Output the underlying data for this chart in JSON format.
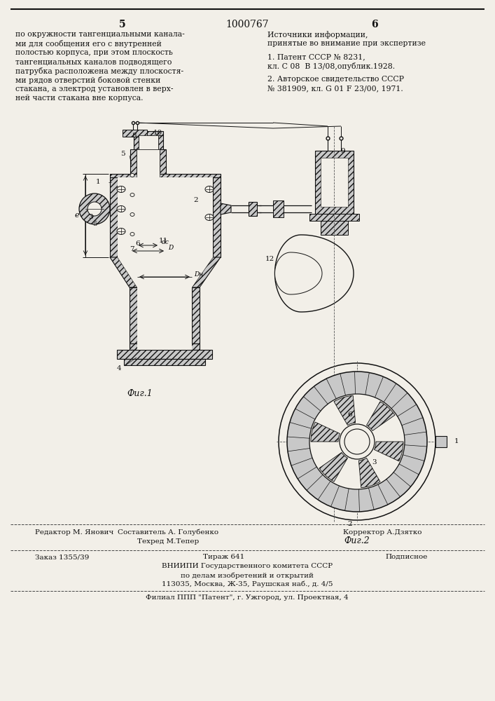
{
  "page_color": "#f2efe8",
  "page_num_left": "5",
  "page_num_center": "1000767",
  "page_num_right": "6",
  "left_text_lines": [
    "по окружности тангенциальными канала-",
    "ми для сообщения его с внутренней",
    "полостью корпуса, при этом плоскость",
    "тангенциальных каналов подводящего",
    "патрубка расположена между плоскостя-",
    "ми рядов отверстий боковой стенки",
    "стакана, а электрод установлен в верх-",
    "ней части стакана вне корпуса."
  ],
  "right_header": "Источники информации,",
  "right_subheader": "принятые во внимание при экспертизе",
  "right_ref1_line1": "1. Патент СССР № 8231,",
  "right_ref1_line2": "кл. С 08  В 13/08,опублик.1928.",
  "right_ref2_line1": "2. Авторское свидетельство СССР",
  "right_ref2_line2": "№ 381909, кл. G 01 F 23/00, 1971.",
  "fig1_caption": "Фиг.1",
  "fig2_caption": "Фиг.2",
  "footer_editor": "Редактор М. Янович",
  "footer_comp": "Составитель А. Голубенко",
  "footer_tech": "Техред М.Тепер",
  "footer_corr": "Корректор А.Дзятко",
  "footer_order": "Заказ 1355/39",
  "footer_tirazh": "Тираж 641",
  "footer_podp": "Подписное",
  "footer_vniipii1": "ВНИИПИ Государственного комитета СССР",
  "footer_vniipii2": "по делам изобретений и открытий",
  "footer_vniipii3": "113035, Москва, Ж-35, Раушская наб., д. 4/5",
  "footer_filial": "Филиал ППП \"Патент\", г. Ужгород, ул. Проектная, 4",
  "hatch_color": "#c8c8c8",
  "line_color": "#111111"
}
